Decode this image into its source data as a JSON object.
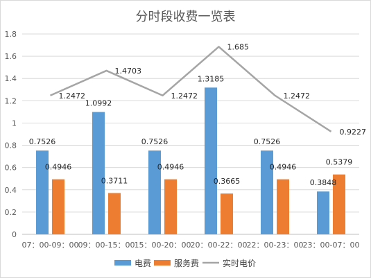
{
  "chart_data": {
    "type": "bar",
    "title": "分时段收费一览表",
    "categories": [
      "07：00-09：00",
      "09：00-15：00",
      "15：00-20：00",
      "20：00-22：00",
      "22：00-23：00",
      "23：00-07：00"
    ],
    "series": [
      {
        "name": "电费",
        "type": "bar",
        "color": "#5B9BD5",
        "values": [
          0.7526,
          1.0992,
          0.7526,
          1.3185,
          0.7526,
          0.3848
        ]
      },
      {
        "name": "服务费",
        "type": "bar",
        "color": "#ED7D31",
        "values": [
          0.4946,
          0.3711,
          0.4946,
          0.3665,
          0.4946,
          0.5379
        ]
      },
      {
        "name": "实时电价",
        "type": "line",
        "color": "#A5A5A5",
        "values": [
          1.2472,
          1.4703,
          1.2472,
          1.685,
          1.2472,
          0.9227
        ]
      }
    ],
    "data_labels": {
      "bar1": [
        "0.7526",
        "1.0992",
        "0.7526",
        "1.3185",
        "0.7526",
        "0.3848"
      ],
      "bar2": [
        "0.4946",
        "0.3711",
        "0.4946",
        "0.3665",
        "0.4946",
        "0.5379"
      ],
      "line": [
        "1.2472",
        "1.4703",
        "1.2472",
        "1.685",
        "1.2472",
        "0.9227"
      ]
    },
    "yticks": [
      "0",
      "0.2",
      "0.4",
      "0.6",
      "0.8",
      "1",
      "1.2",
      "1.4",
      "1.6",
      "1.8"
    ],
    "ylim": [
      0,
      1.8
    ],
    "grid": true,
    "legend_position": "bottom"
  }
}
